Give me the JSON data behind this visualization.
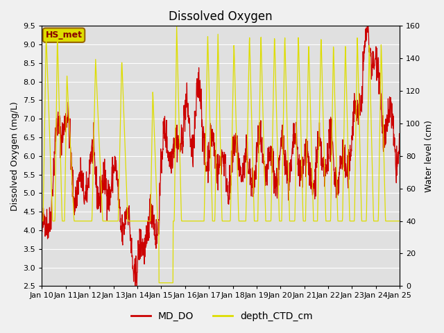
{
  "title": "Dissolved Oxygen",
  "ylabel_left": "Dissolved Oxygen (mg/L)",
  "ylabel_right": "Water level (cm)",
  "ylim_left": [
    2.5,
    9.5
  ],
  "ylim_right": [
    0,
    160
  ],
  "yticks_left": [
    2.5,
    3.0,
    3.5,
    4.0,
    4.5,
    5.0,
    5.5,
    6.0,
    6.5,
    7.0,
    7.5,
    8.0,
    8.5,
    9.0,
    9.5
  ],
  "yticks_right": [
    0,
    20,
    40,
    60,
    80,
    100,
    120,
    140,
    160
  ],
  "xtick_labels": [
    "Jan 10",
    "Jan 11",
    "Jan 12",
    "Jan 13",
    "Jan 14",
    "Jan 15",
    "Jan 16",
    "Jan 17",
    "Jan 18",
    "Jan 19",
    "Jan 20",
    "Jan 21",
    "Jan 22",
    "Jan 23",
    "Jan 24",
    "Jan 25"
  ],
  "legend_labels": [
    "MD_DO",
    "depth_CTD_cm"
  ],
  "line_color_do": "#cc0000",
  "line_color_depth": "#dddd00",
  "annotation_text": "HS_met",
  "annotation_bg": "#dddd00",
  "annotation_border": "#996600",
  "annotation_text_color": "#880000",
  "fig_facecolor": "#f0f0f0",
  "plot_facecolor": "#e0e0e0",
  "title_fontsize": 12,
  "label_fontsize": 9,
  "tick_fontsize": 8,
  "legend_fontsize": 10
}
